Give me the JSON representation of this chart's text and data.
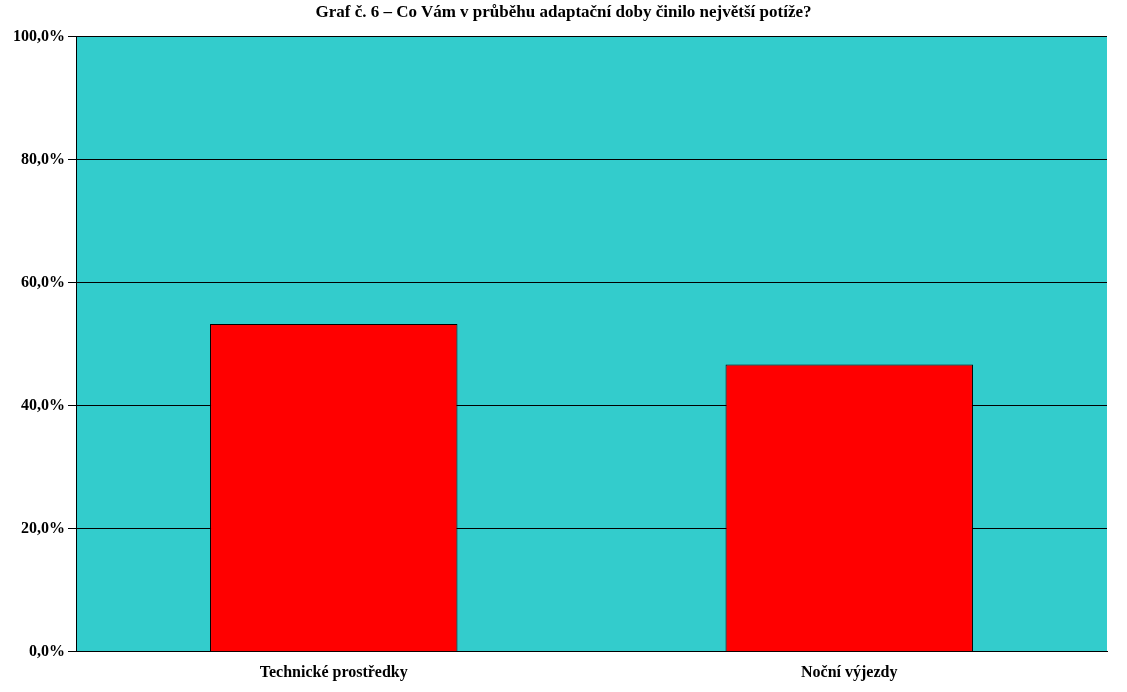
{
  "chart_data": {
    "type": "bar",
    "title": "Graf č. 6 – Co Vám v průběhu adaptační doby činilo největší potíže?",
    "categories": [
      "Technické prostředky",
      "Noční výjezdy"
    ],
    "values": [
      53.3,
      46.7
    ],
    "color": "#ff0000",
    "ylim": [
      0,
      100
    ],
    "yticks": [
      {
        "value": 0,
        "label": "0,0%"
      },
      {
        "value": 20,
        "label": "20,0%"
      },
      {
        "value": 40,
        "label": "40,0%"
      },
      {
        "value": 60,
        "label": "60,0%"
      },
      {
        "value": 80,
        "label": "80,0%"
      },
      {
        "value": 100,
        "label": "100,0%"
      }
    ],
    "grid": "y",
    "legend": false
  }
}
